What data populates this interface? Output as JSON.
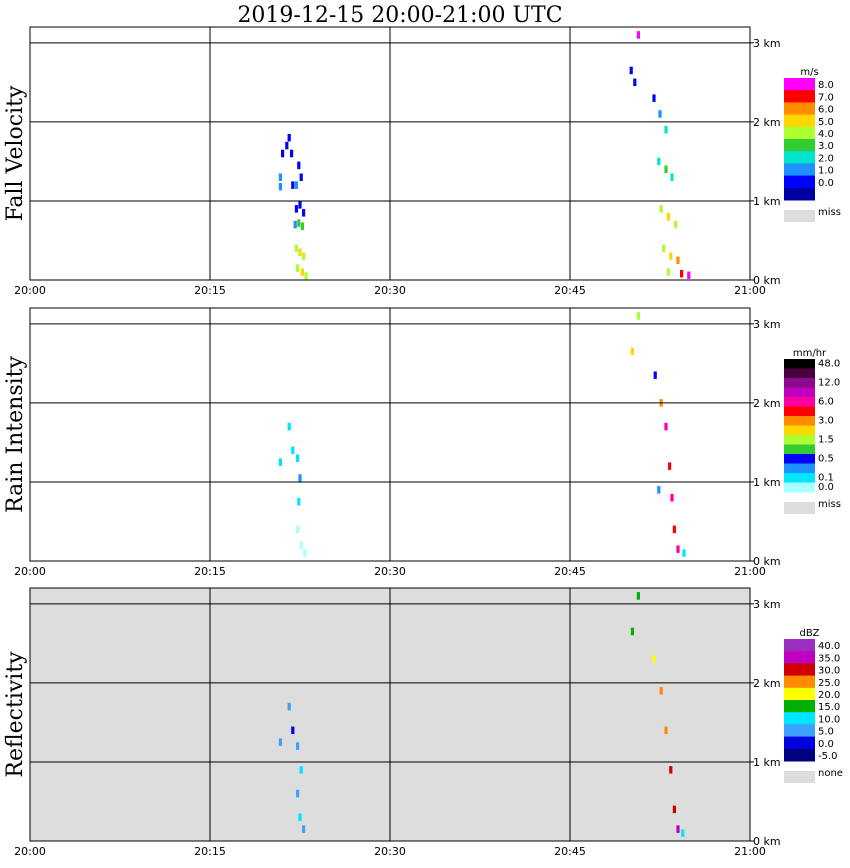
{
  "title": "2019-12-15   20:00-21:00 UTC",
  "x_ticks": [
    "20:00",
    "20:15",
    "20:30",
    "20:45",
    "21:00"
  ],
  "alt_ticks": [
    "0 km",
    "1 km",
    "2 km",
    "3 km"
  ],
  "chart_data": [
    {
      "type": "heatmap",
      "ylabel": "Fall Velocity",
      "xlim": [
        "20:00",
        "21:00"
      ],
      "ylim_km": [
        0,
        3.2
      ],
      "background": "#ffffff",
      "colorbar": {
        "unit": "m/s",
        "labels": [
          "8.0",
          "7.0",
          "6.0",
          "5.0",
          "4.0",
          "3.0",
          "2.0",
          "1.0",
          "0.0"
        ],
        "colors": [
          "#ff00ff",
          "#ff0000",
          "#ff8c00",
          "#ffd700",
          "#adff2f",
          "#32cd32",
          "#00e5cc",
          "#1e90ff",
          "#0000ff",
          "#0000a0"
        ],
        "miss_label": "miss",
        "miss_color": "#dddddd"
      },
      "cells": [
        {
          "t": 20.87,
          "z": 1.18,
          "c": 7
        },
        {
          "t": 20.87,
          "z": 1.3,
          "c": 7
        },
        {
          "t": 21.05,
          "z": 1.6,
          "c": 8
        },
        {
          "t": 21.4,
          "z": 1.7,
          "c": 8
        },
        {
          "t": 21.6,
          "z": 1.8,
          "c": 8
        },
        {
          "t": 21.8,
          "z": 1.6,
          "c": 8
        },
        {
          "t": 21.9,
          "z": 1.2,
          "c": 8
        },
        {
          "t": 22.2,
          "z": 1.2,
          "c": 7
        },
        {
          "t": 22.4,
          "z": 1.45,
          "c": 8
        },
        {
          "t": 22.6,
          "z": 1.3,
          "c": 8
        },
        {
          "t": 22.2,
          "z": 0.9,
          "c": 8
        },
        {
          "t": 22.5,
          "z": 0.95,
          "c": 8
        },
        {
          "t": 22.8,
          "z": 0.85,
          "c": 8
        },
        {
          "t": 22.1,
          "z": 0.7,
          "c": 7
        },
        {
          "t": 22.4,
          "z": 0.72,
          "c": 5
        },
        {
          "t": 22.7,
          "z": 0.68,
          "c": 5
        },
        {
          "t": 22.2,
          "z": 0.4,
          "c": 4
        },
        {
          "t": 22.5,
          "z": 0.35,
          "c": 3
        },
        {
          "t": 22.8,
          "z": 0.3,
          "c": 4
        },
        {
          "t": 22.3,
          "z": 0.15,
          "c": 4
        },
        {
          "t": 22.7,
          "z": 0.1,
          "c": 3
        },
        {
          "t": 23.0,
          "z": 0.05,
          "c": 4
        },
        {
          "t": 50.7,
          "z": 3.1,
          "c": 0
        },
        {
          "t": 50.1,
          "z": 2.65,
          "c": 8
        },
        {
          "t": 50.4,
          "z": 2.5,
          "c": 8
        },
        {
          "t": 52.0,
          "z": 2.3,
          "c": 8
        },
        {
          "t": 52.5,
          "z": 2.1,
          "c": 7
        },
        {
          "t": 53.0,
          "z": 1.9,
          "c": 6
        },
        {
          "t": 52.4,
          "z": 1.5,
          "c": 6
        },
        {
          "t": 53.0,
          "z": 1.4,
          "c": 5
        },
        {
          "t": 53.5,
          "z": 1.3,
          "c": 6
        },
        {
          "t": 52.6,
          "z": 0.9,
          "c": 4
        },
        {
          "t": 53.2,
          "z": 0.8,
          "c": 3
        },
        {
          "t": 53.8,
          "z": 0.7,
          "c": 4
        },
        {
          "t": 52.8,
          "z": 0.4,
          "c": 4
        },
        {
          "t": 53.4,
          "z": 0.3,
          "c": 3
        },
        {
          "t": 54.0,
          "z": 0.25,
          "c": 2
        },
        {
          "t": 53.2,
          "z": 0.1,
          "c": 4
        },
        {
          "t": 54.3,
          "z": 0.08,
          "c": 1
        },
        {
          "t": 54.9,
          "z": 0.06,
          "c": 0
        }
      ]
    },
    {
      "type": "heatmap",
      "ylabel": "Rain Intensity",
      "xlim": [
        "20:00",
        "21:00"
      ],
      "ylim_km": [
        0,
        3.2
      ],
      "background": "#ffffff",
      "colorbar": {
        "unit": "mm/hr",
        "labels": [
          "48.0",
          "",
          "12.0",
          "",
          "6.0",
          "",
          "3.0",
          "",
          "1.5",
          "",
          "0.5",
          "",
          "0.1",
          "0.0"
        ],
        "colors": [
          "#000000",
          "#4b0040",
          "#8b0a8b",
          "#c000c0",
          "#ff00a0",
          "#ff0000",
          "#ff8c00",
          "#ffd700",
          "#adff2f",
          "#32cd32",
          "#0000ff",
          "#1e90ff",
          "#00e5ff",
          "#aaffff"
        ],
        "miss_label": "miss",
        "miss_color": "#dddddd"
      },
      "cells": [
        {
          "t": 20.87,
          "z": 1.25,
          "c": 12
        },
        {
          "t": 21.6,
          "z": 1.7,
          "c": 12
        },
        {
          "t": 21.9,
          "z": 1.4,
          "c": 12
        },
        {
          "t": 22.3,
          "z": 1.3,
          "c": 12
        },
        {
          "t": 22.5,
          "z": 1.05,
          "c": 11
        },
        {
          "t": 22.4,
          "z": 0.75,
          "c": 12
        },
        {
          "t": 22.3,
          "z": 0.4,
          "c": 13
        },
        {
          "t": 22.6,
          "z": 0.2,
          "c": 13
        },
        {
          "t": 22.9,
          "z": 0.1,
          "c": 13
        },
        {
          "t": 50.7,
          "z": 3.1,
          "c": 8
        },
        {
          "t": 50.2,
          "z": 2.65,
          "c": 7
        },
        {
          "t": 52.1,
          "z": 2.35,
          "c": 10
        },
        {
          "t": 52.6,
          "z": 2.0,
          "c": 6
        },
        {
          "t": 53.0,
          "z": 1.7,
          "c": 4
        },
        {
          "t": 53.3,
          "z": 1.2,
          "c": 5
        },
        {
          "t": 53.5,
          "z": 0.8,
          "c": 4
        },
        {
          "t": 53.7,
          "z": 0.4,
          "c": 5
        },
        {
          "t": 54.0,
          "z": 0.15,
          "c": 4
        },
        {
          "t": 52.4,
          "z": 0.9,
          "c": 11
        },
        {
          "t": 54.5,
          "z": 0.1,
          "c": 12
        }
      ]
    },
    {
      "type": "heatmap",
      "ylabel": "Reflectivity",
      "xlim": [
        "20:00",
        "21:00"
      ],
      "ylim_km": [
        0,
        3.2
      ],
      "background": "#dddddd",
      "colorbar": {
        "unit": "dBZ",
        "labels": [
          "40.0",
          "35.0",
          "30.0",
          "25.0",
          "20.0",
          "15.0",
          "10.0",
          "5.0",
          "0.0",
          "-5.0"
        ],
        "colors": [
          "#9b30c0",
          "#c000c0",
          "#d00000",
          "#ff8c00",
          "#ffff00",
          "#00b000",
          "#00e5ff",
          "#3ca0ff",
          "#0000e0",
          "#000080"
        ],
        "miss_label": "none",
        "miss_color": "#dddddd"
      },
      "cells": [
        {
          "t": 20.87,
          "z": 1.25,
          "c": 7
        },
        {
          "t": 21.6,
          "z": 1.7,
          "c": 7
        },
        {
          "t": 21.9,
          "z": 1.4,
          "c": 8
        },
        {
          "t": 22.3,
          "z": 1.2,
          "c": 7
        },
        {
          "t": 22.6,
          "z": 0.9,
          "c": 6
        },
        {
          "t": 22.3,
          "z": 0.6,
          "c": 7
        },
        {
          "t": 22.5,
          "z": 0.3,
          "c": 6
        },
        {
          "t": 22.8,
          "z": 0.15,
          "c": 7
        },
        {
          "t": 50.7,
          "z": 3.1,
          "c": 5
        },
        {
          "t": 50.2,
          "z": 2.65,
          "c": 5
        },
        {
          "t": 52.0,
          "z": 2.3,
          "c": 4
        },
        {
          "t": 52.6,
          "z": 1.9,
          "c": 3
        },
        {
          "t": 53.0,
          "z": 1.4,
          "c": 3
        },
        {
          "t": 53.4,
          "z": 0.9,
          "c": 2
        },
        {
          "t": 53.7,
          "z": 0.4,
          "c": 2
        },
        {
          "t": 54.0,
          "z": 0.15,
          "c": 1
        },
        {
          "t": 54.4,
          "z": 0.1,
          "c": 6
        }
      ]
    }
  ]
}
